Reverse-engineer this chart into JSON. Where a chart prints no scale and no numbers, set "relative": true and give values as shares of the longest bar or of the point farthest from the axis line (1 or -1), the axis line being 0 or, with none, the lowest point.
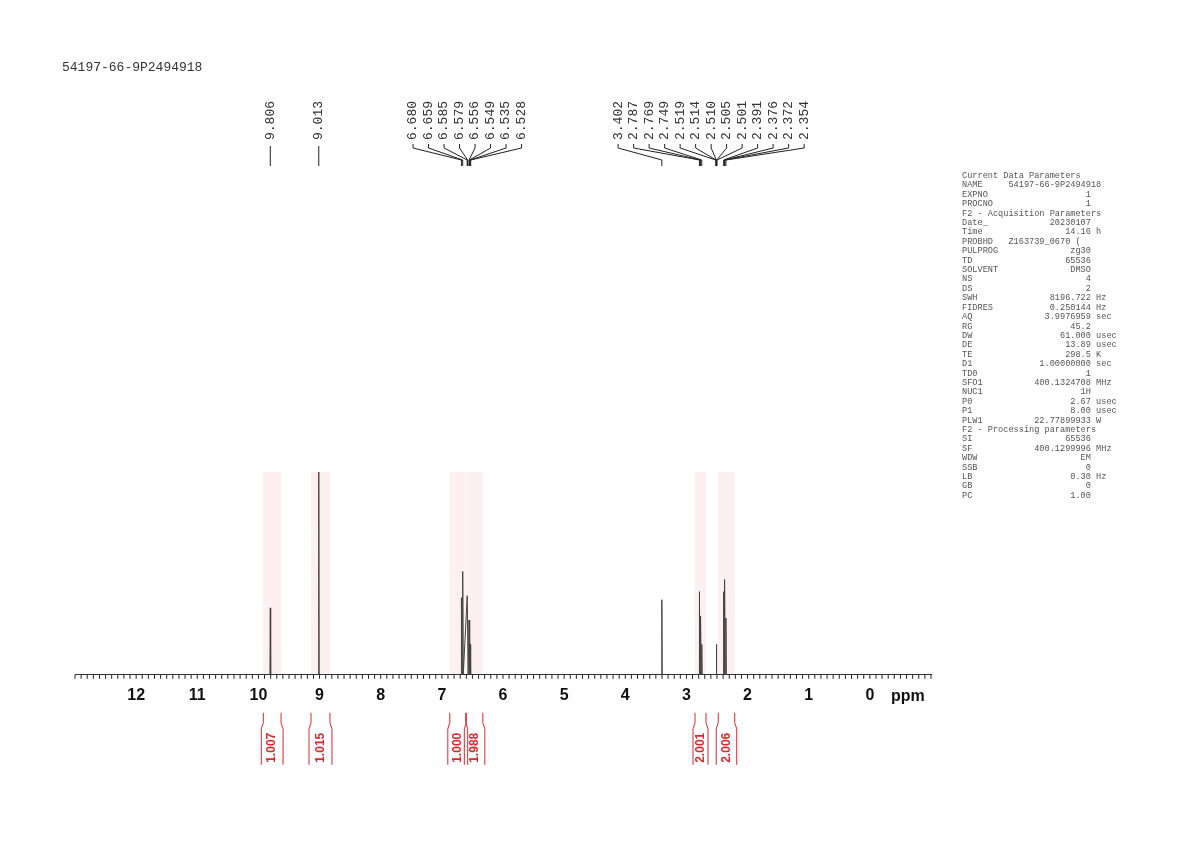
{
  "chart_data": {
    "type": "line",
    "title": "54197-66-9P2494918",
    "xlabel": "ppm",
    "relative": true,
    "xlim": [
      13,
      -1
    ],
    "xticks": [
      12,
      11,
      10,
      9,
      8,
      7,
      6,
      5,
      4,
      3,
      2,
      1,
      0
    ],
    "x": [
      13,
      9.812,
      9.806,
      9.8,
      9.019,
      9.013,
      9.007,
      6.686,
      6.68,
      6.67,
      6.659,
      6.65,
      6.585,
      6.57,
      6.556,
      6.545,
      6.535,
      6.529,
      3.408,
      3.402,
      3.396,
      2.793,
      2.787,
      2.778,
      2.769,
      2.759,
      2.749,
      2.743,
      2.516,
      2.51,
      2.504,
      2.397,
      2.391,
      2.3835,
      2.376,
      2.365,
      2.354,
      2.348,
      -1
    ],
    "series": [
      {
        "color": "#444444",
        "values": [
          0,
          0,
          0.33,
          0,
          0,
          1,
          0,
          0,
          0.38,
          0,
          0.51,
          0,
          0.39,
          0,
          0.27,
          0,
          0.15,
          0,
          0,
          0.37,
          0,
          0,
          0.41,
          0,
          0.29,
          0,
          0.15,
          0,
          0,
          0.15,
          0,
          0,
          0.41,
          0,
          0.47,
          0,
          0.28,
          0,
          0
        ]
      }
    ],
    "bands": [
      {
        "axis": "x",
        "from": 9.92,
        "to": 9.63,
        "label": "1.007",
        "color": "#e0262d"
      },
      {
        "axis": "x",
        "from": 9.14,
        "to": 8.83,
        "label": "1.015",
        "color": "#e0262d"
      },
      {
        "axis": "x",
        "from": 6.87,
        "to": 6.61,
        "label": "1.000",
        "color": "#e0262d"
      },
      {
        "axis": "x",
        "from": 6.6,
        "to": 6.33,
        "label": "1.988",
        "color": "#e0262d"
      },
      {
        "axis": "x",
        "from": 2.86,
        "to": 2.68,
        "label": "2.001",
        "color": "#e0262d"
      },
      {
        "axis": "x",
        "from": 2.48,
        "to": 2.21,
        "label": "2.006",
        "color": "#e0262d"
      }
    ],
    "annotations": [
      {
        "text": "9.806",
        "x": 9.806
      },
      {
        "text": "9.013",
        "x": 9.013
      },
      {
        "text": "6.680",
        "x": 6.68
      },
      {
        "text": "6.659",
        "x": 6.659
      },
      {
        "text": "6.585",
        "x": 6.585
      },
      {
        "text": "6.579",
        "x": 6.579
      },
      {
        "text": "6.556",
        "x": 6.556
      },
      {
        "text": "6.549",
        "x": 6.549
      },
      {
        "text": "6.535",
        "x": 6.535
      },
      {
        "text": "6.528",
        "x": 6.528
      },
      {
        "text": "3.402",
        "x": 3.402
      },
      {
        "text": "2.787",
        "x": 2.787
      },
      {
        "text": "2.769",
        "x": 2.769
      },
      {
        "text": "2.749",
        "x": 2.749
      },
      {
        "text": "2.519",
        "x": 2.519
      },
      {
        "text": "2.514",
        "x": 2.514
      },
      {
        "text": "2.510",
        "x": 2.51
      },
      {
        "text": "2.505",
        "x": 2.505
      },
      {
        "text": "2.501",
        "x": 2.501
      },
      {
        "text": "2.391",
        "x": 2.391
      },
      {
        "text": "2.376",
        "x": 2.376
      },
      {
        "text": "2.372",
        "x": 2.372
      },
      {
        "text": "2.354",
        "x": 2.354
      },
      "Current Data Parameters",
      "NAME     54197-66-9P2494918",
      "EXPNO                   1",
      "PROCNO                  1",
      "F2 - Acquisition Parameters",
      "Date_            20230107",
      "Time                14.16 h",
      "PROBHD   Z163739_0670 (",
      "PULPROG              zg30",
      "TD                  65536",
      "SOLVENT              DMSO",
      "NS                      4",
      "DS                      2",
      "SWH              8196.722 Hz",
      "FIDRES           0.250144 Hz",
      "AQ              3.9976959 sec",
      "RG                   45.2",
      "DW                 61.000 usec",
      "DE                  13.89 usec",
      "TE                  298.5 K",
      "D1             1.00000000 sec",
      "TD0                     1",
      "SFO1          400.1324708 MHz",
      "NUC1                   1H",
      "P0                   2.67 usec",
      "P1                   8.00 usec",
      "PLW1          22.77899933 W",
      "F2 - Processing parameters",
      "SI                  65536",
      "SF            400.1299996 MHz",
      "WDW                    EM",
      "SSB                     0",
      "LB                   0.30 Hz",
      "GB                      0",
      "PC                   1.00"
    ]
  }
}
